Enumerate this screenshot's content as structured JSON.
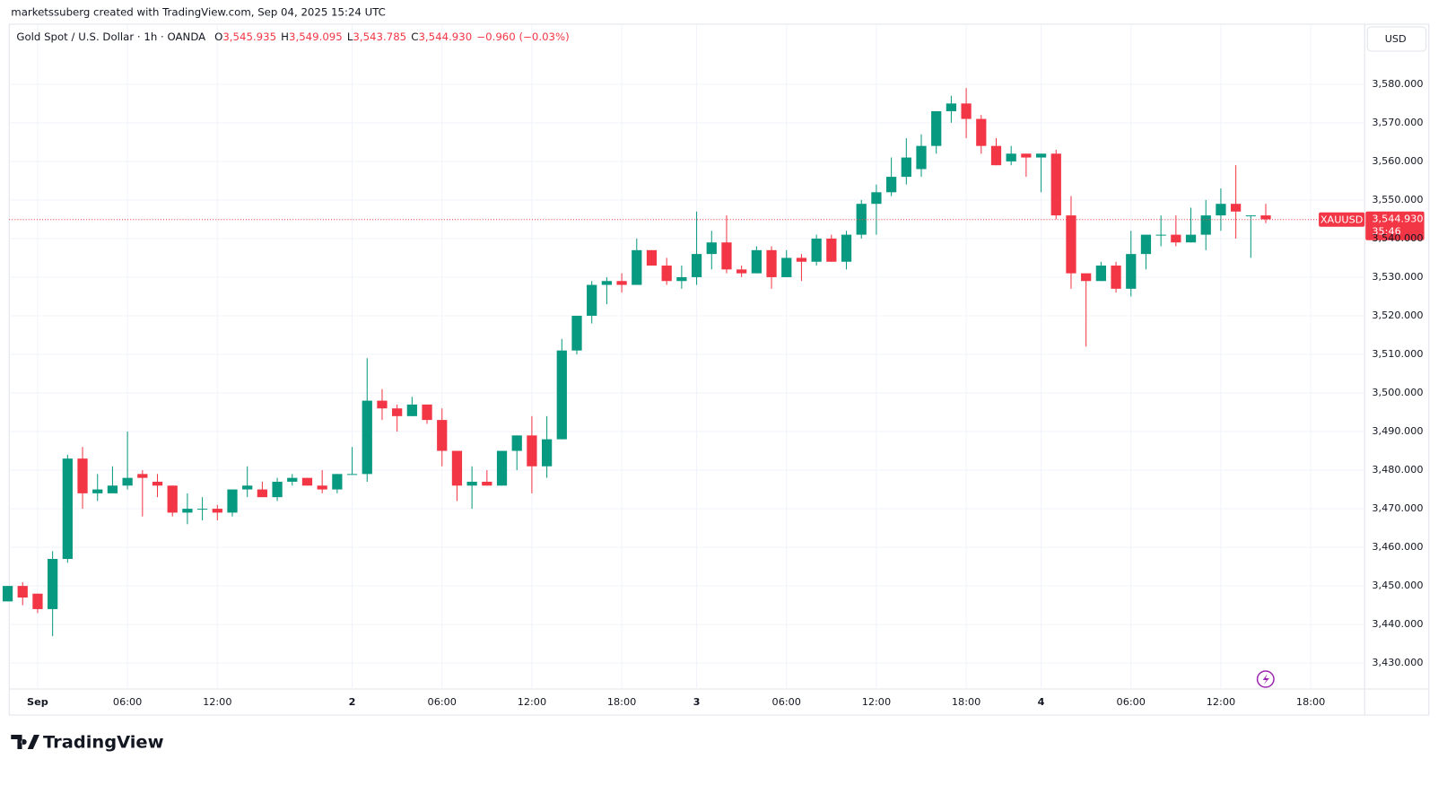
{
  "header": {
    "credit": "marketssuberg created with TradingView.com, Sep 04, 2025 15:24 UTC",
    "symbol": "Gold Spot / U.S. Dollar · 1h · OANDA",
    "legend": [
      {
        "label": "O",
        "value": "3,545.935"
      },
      {
        "label": "H",
        "value": "3,549.095"
      },
      {
        "label": "L",
        "value": "3,543.785"
      },
      {
        "label": "C",
        "value": "3,544.930"
      }
    ],
    "change": "−0.960 (−0.03%)",
    "currency": "USD",
    "logo": "TradingView"
  },
  "chart_data": {
    "type": "candlestick",
    "up_color": "#089981",
    "down_color": "#f23645",
    "grid": true,
    "ylim": [
      3423.3,
      3595.3
    ],
    "yticks": [
      {
        "value": 3430,
        "label": "3,430.000"
      },
      {
        "value": 3440,
        "label": "3,440.000"
      },
      {
        "value": 3450,
        "label": "3,450.000"
      },
      {
        "value": 3460,
        "label": "3,460.000"
      },
      {
        "value": 3470,
        "label": "3,470.000"
      },
      {
        "value": 3480,
        "label": "3,480.000"
      },
      {
        "value": 3490,
        "label": "3,490.000"
      },
      {
        "value": 3500,
        "label": "3,500.000"
      },
      {
        "value": 3510,
        "label": "3,510.000"
      },
      {
        "value": 3520,
        "label": "3,520.000"
      },
      {
        "value": 3530,
        "label": "3,530.000"
      },
      {
        "value": 3540,
        "label": "3,540.000"
      },
      {
        "value": 3550,
        "label": "3,550.000"
      },
      {
        "value": 3560,
        "label": "3,560.000"
      },
      {
        "value": 3570,
        "label": "3,570.000"
      },
      {
        "value": 3580,
        "label": "3,580.000"
      }
    ],
    "xlim": [
      0.1,
      90.6
    ],
    "xticks": [
      {
        "value": 2,
        "label": "Sep"
      },
      {
        "value": 8,
        "label": "06:00"
      },
      {
        "value": 14,
        "label": "12:00"
      },
      {
        "value": 23,
        "label": "2"
      },
      {
        "value": 29,
        "label": "06:00"
      },
      {
        "value": 35,
        "label": "12:00"
      },
      {
        "value": 41,
        "label": "18:00"
      },
      {
        "value": 46,
        "label": "3"
      },
      {
        "value": 52,
        "label": "06:00"
      },
      {
        "value": 58,
        "label": "12:00"
      },
      {
        "value": 64,
        "label": "18:00"
      },
      {
        "value": 69,
        "label": "4"
      },
      {
        "value": 75,
        "label": "06:00"
      },
      {
        "value": 81,
        "label": "12:00"
      },
      {
        "value": 87,
        "label": "18:00"
      }
    ],
    "open": [
      3446,
      3450,
      3448,
      3444,
      3457,
      3483,
      3474,
      3474,
      3476,
      3479,
      3477,
      3476,
      3469,
      3470,
      3470,
      3469,
      3475,
      3475,
      3473,
      3477,
      3478,
      3476,
      3475,
      3479,
      3479,
      3498,
      3496,
      3494,
      3497,
      3493,
      3485,
      3476,
      3477,
      3476,
      3485,
      3489,
      3481,
      3488,
      3511,
      3520,
      3528,
      3529,
      3528,
      3537,
      3533,
      3529,
      3530,
      3536,
      3539,
      3532,
      3531,
      3537,
      3530,
      3535,
      3534,
      3540,
      3534,
      3541,
      3549,
      3552,
      3556,
      3558,
      3564,
      3573,
      3575,
      3571,
      3564,
      3560,
      3562,
      3561,
      3562,
      3546,
      3531,
      3529,
      3533,
      3527,
      3536,
      3541,
      3541,
      3539,
      3541,
      3546,
      3549,
      3546,
      3546
    ],
    "high": [
      3450,
      3451,
      3448,
      3459,
      3484,
      3486,
      3479,
      3481,
      3490,
      3480,
      3479,
      3476,
      3474,
      3473,
      3471,
      3475,
      3481,
      3477,
      3478,
      3479,
      3478,
      3480,
      3479,
      3486,
      3509,
      3501,
      3497,
      3499,
      3497,
      3496,
      3485,
      3481,
      3480,
      3485,
      3489,
      3494,
      3494,
      3514,
      3520,
      3529,
      3530,
      3531,
      3540,
      3537,
      3535,
      3533,
      3547,
      3542,
      3546,
      3533,
      3538,
      3538,
      3537,
      3536,
      3541,
      3541,
      3542,
      3550,
      3554,
      3561,
      3566,
      3567,
      3573,
      3577,
      3579,
      3572,
      3566,
      3564,
      3562,
      3562,
      3563,
      3551,
      3531,
      3534,
      3534,
      3542,
      3541,
      3546,
      3546,
      3548,
      3550,
      3553,
      3559,
      3546,
      3549
    ],
    "low": [
      3446,
      3445,
      3443,
      3437,
      3456,
      3470,
      3472,
      3474,
      3475,
      3468,
      3473,
      3468,
      3466,
      3467,
      3467,
      3468,
      3473,
      3473,
      3472,
      3476,
      3476,
      3474,
      3474,
      3479,
      3477,
      3493,
      3490,
      3494,
      3492,
      3481,
      3472,
      3470,
      3476,
      3476,
      3480,
      3474,
      3478,
      3488,
      3510,
      3518,
      3523,
      3526,
      3528,
      3533,
      3528,
      3527,
      3528,
      3532,
      3531,
      3530,
      3531,
      3527,
      3530,
      3529,
      3533,
      3534,
      3532,
      3540,
      3541,
      3551,
      3554,
      3556,
      3562,
      3570,
      3566,
      3562,
      3559,
      3559,
      3556,
      3552,
      3545,
      3527,
      3512,
      3529,
      3526,
      3525,
      3532,
      3538,
      3538,
      3539,
      3537,
      3542,
      3540,
      3535,
      3544
    ],
    "close": [
      3450,
      3447,
      3444,
      3457,
      3483,
      3474,
      3475,
      3476,
      3478,
      3478,
      3476,
      3469,
      3470,
      3470,
      3469,
      3475,
      3476,
      3473,
      3477,
      3478,
      3476,
      3475,
      3479,
      3479,
      3498,
      3496,
      3494,
      3497,
      3493,
      3485,
      3476,
      3477,
      3476,
      3485,
      3489,
      3481,
      3488,
      3511,
      3520,
      3528,
      3529,
      3528,
      3537,
      3533,
      3529,
      3530,
      3536,
      3539,
      3532,
      3531,
      3537,
      3530,
      3535,
      3534,
      3540,
      3534,
      3541,
      3549,
      3552,
      3556,
      3561,
      3564,
      3573,
      3575,
      3571,
      3564,
      3559,
      3562,
      3561,
      3562,
      3546,
      3531,
      3529,
      3533,
      3527,
      3536,
      3541,
      3541,
      3539,
      3541,
      3546,
      3549,
      3547,
      3546,
      3545
    ],
    "last_price": {
      "value": 3544.93,
      "label": "3,544.930"
    },
    "price_tag_name": "XAUUSD",
    "countdown": "35:46"
  }
}
